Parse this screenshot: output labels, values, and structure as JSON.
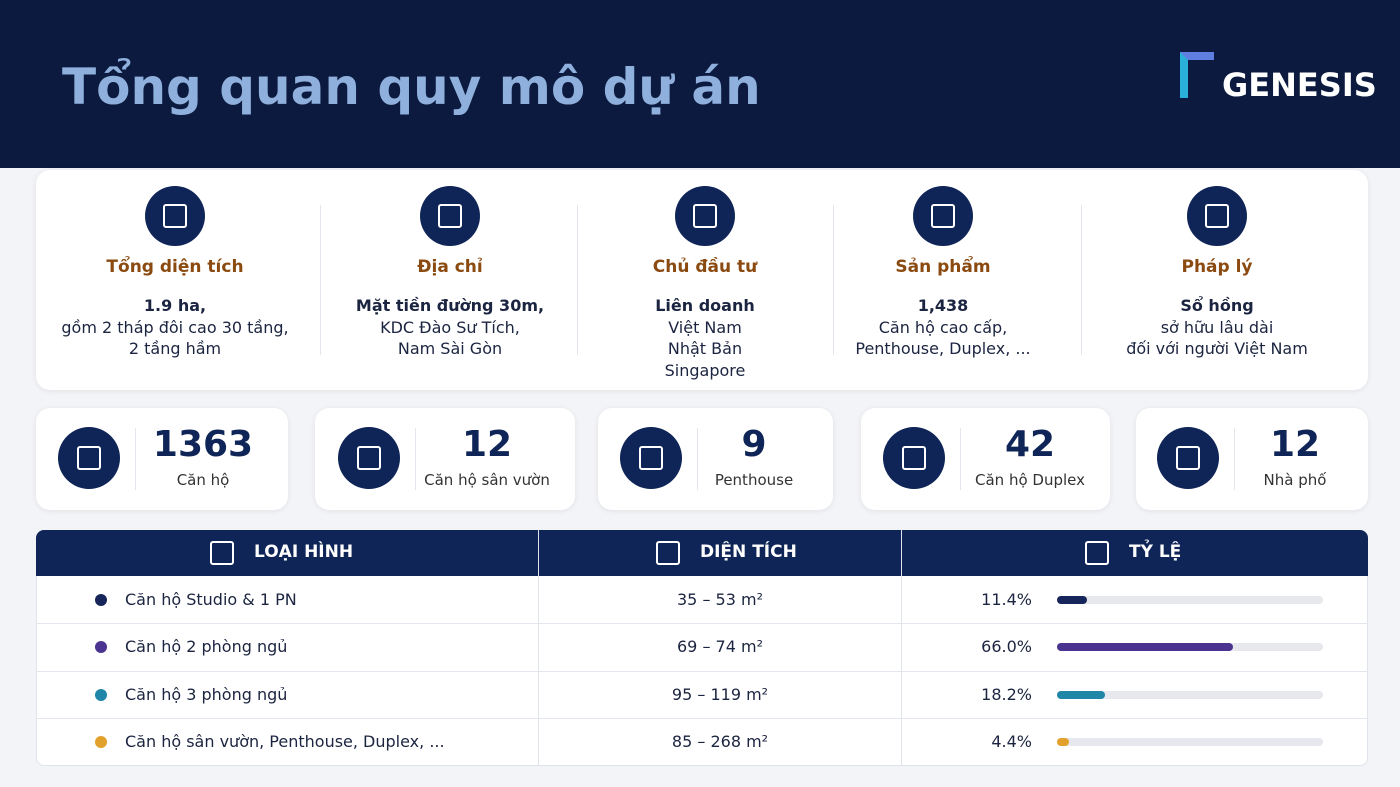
{
  "header": {
    "title": "Tổng quan quy mô dự án",
    "logo": "GENESIS"
  },
  "overview": [
    {
      "heading": "Tổng diện tích",
      "lines": [
        "1.9 ha,",
        "gồm 2 tháp đôi cao 30 tầng,",
        "2 tầng hầm"
      ]
    },
    {
      "heading": "Địa chỉ",
      "lines": [
        "Mặt tiền đường 30m,",
        "KDC Đào Sư Tích,",
        "Nam Sài Gòn"
      ]
    },
    {
      "heading": "Chủ đầu tư",
      "lines": [
        "Liên doanh",
        "Việt Nam",
        "Nhật Bản",
        "Singapore"
      ]
    },
    {
      "heading": "Sản phẩm",
      "lines": [
        "1,438",
        "Căn hộ cao cấp,",
        "Penthouse, Duplex, ..."
      ]
    },
    {
      "heading": "Pháp lý",
      "lines": [
        "Sổ hồng",
        "sở hữu lâu dài",
        "đối với người Việt Nam"
      ]
    }
  ],
  "stats": [
    {
      "value": 1363,
      "label": "Căn hộ"
    },
    {
      "value": 12,
      "label": "Căn hộ sân vườn"
    },
    {
      "value": 9,
      "label": "Penthouse"
    },
    {
      "value": 42,
      "label": "Căn hộ Duplex"
    },
    {
      "value": 12,
      "label": "Nhà phố"
    }
  ],
  "table": {
    "columns": [
      "LOẠI HÌNH",
      "DIỆN TÍCH",
      "TỶ LỆ"
    ],
    "rows": [
      {
        "type": "Căn hộ Studio & 1 PN",
        "area": "35 – 53 m²",
        "share": {
          "value": 11.4,
          "label": "11.4%"
        },
        "color": "#16265a"
      },
      {
        "type": "Căn hộ 2 phòng ngủ",
        "area": "69 – 74 m²",
        "share": {
          "value": 66.0,
          "label": "66.0%"
        },
        "color": "#4a3490"
      },
      {
        "type": "Căn hộ 3 phòng ngủ",
        "area": "95 – 119 m²",
        "share": {
          "value": 18.2,
          "label": "18.2%"
        },
        "color": "#1f86a8"
      },
      {
        "type": "Căn hộ sân vườn, Penthouse, Duplex, ...",
        "area": "85 – 268 m²",
        "share": {
          "value": 4.4,
          "label": "4.4%"
        },
        "color": "#e2a12c"
      }
    ]
  }
}
